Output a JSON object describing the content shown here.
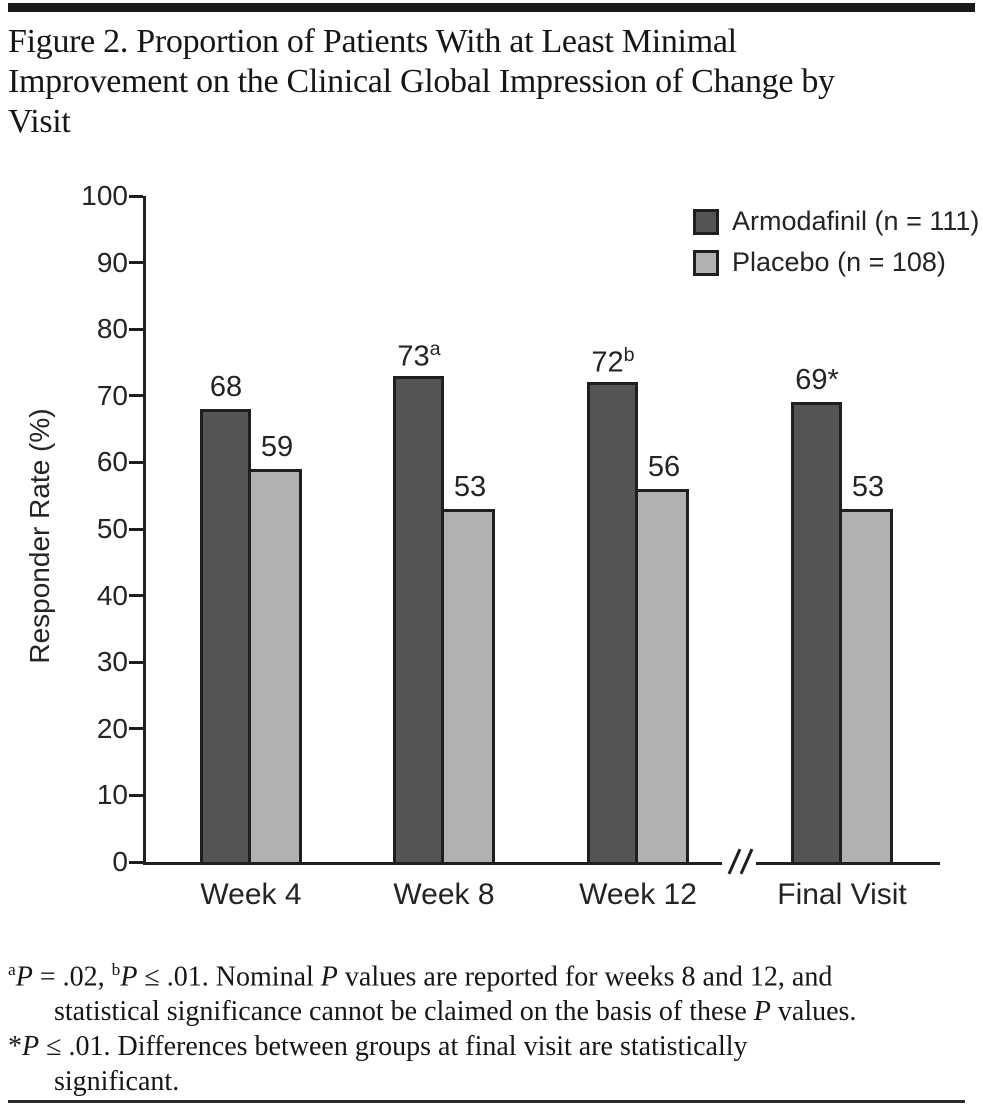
{
  "figure": {
    "title_lines": [
      "Figure 2. Proportion of Patients With at Least Minimal",
      "Improvement on the Clinical Global Impression of Change by",
      "Visit"
    ]
  },
  "chart_data": {
    "type": "bar",
    "title": "Proportion of Patients With at Least Minimal Improvement on the Clinical Global Impression of Change by Visit",
    "categories": [
      "Week 4",
      "Week 8",
      "Week 12",
      "Final Visit"
    ],
    "series": [
      {
        "name": "Armodafinil (n = 111)",
        "color": "#545454",
        "values": [
          68,
          73,
          72,
          69
        ],
        "points": [
          {
            "value": 68,
            "label": "68"
          },
          {
            "value": 73,
            "label": "73",
            "sup": "a"
          },
          {
            "value": 72,
            "label": "72",
            "sup": "b"
          },
          {
            "value": 69,
            "label": "69",
            "suffix": "*"
          }
        ]
      },
      {
        "name": "Placebo (n = 108)",
        "color": "#b1b1b1",
        "values": [
          59,
          53,
          56,
          53
        ],
        "points": [
          {
            "value": 59,
            "label": "59"
          },
          {
            "value": 53,
            "label": "53"
          },
          {
            "value": 56,
            "label": "56"
          },
          {
            "value": 53,
            "label": "53"
          }
        ]
      }
    ],
    "xlabel": "",
    "ylabel": "Responder Rate (%)",
    "ylim": [
      0,
      100
    ],
    "yticks": [
      0,
      10,
      20,
      30,
      40,
      50,
      60,
      70,
      80,
      90,
      100
    ],
    "grid": false,
    "legend_position": "top-right",
    "axis_break_between": [
      "Week 12",
      "Final Visit"
    ]
  },
  "footnotes": {
    "lines": [
      {
        "indent": false,
        "segments": [
          {
            "t": "a",
            "sup": true
          },
          {
            "t": "P",
            "italic": true
          },
          {
            "t": " = .02, "
          },
          {
            "t": "b",
            "sup": true
          },
          {
            "t": "P",
            "italic": true
          },
          {
            "t": " ≤ .01. Nominal "
          },
          {
            "t": "P",
            "italic": true
          },
          {
            "t": " values are reported for weeks 8 and 12, and"
          }
        ]
      },
      {
        "indent": true,
        "segments": [
          {
            "t": "statistical significance cannot be claimed on the basis of these "
          },
          {
            "t": "P",
            "italic": true
          },
          {
            "t": " values."
          }
        ]
      },
      {
        "indent": false,
        "segments": [
          {
            "t": "*"
          },
          {
            "t": "P",
            "italic": true
          },
          {
            "t": " ≤ .01. Differences between groups at final visit are statistically"
          }
        ]
      },
      {
        "indent": true,
        "segments": [
          {
            "t": "significant."
          }
        ]
      }
    ]
  }
}
